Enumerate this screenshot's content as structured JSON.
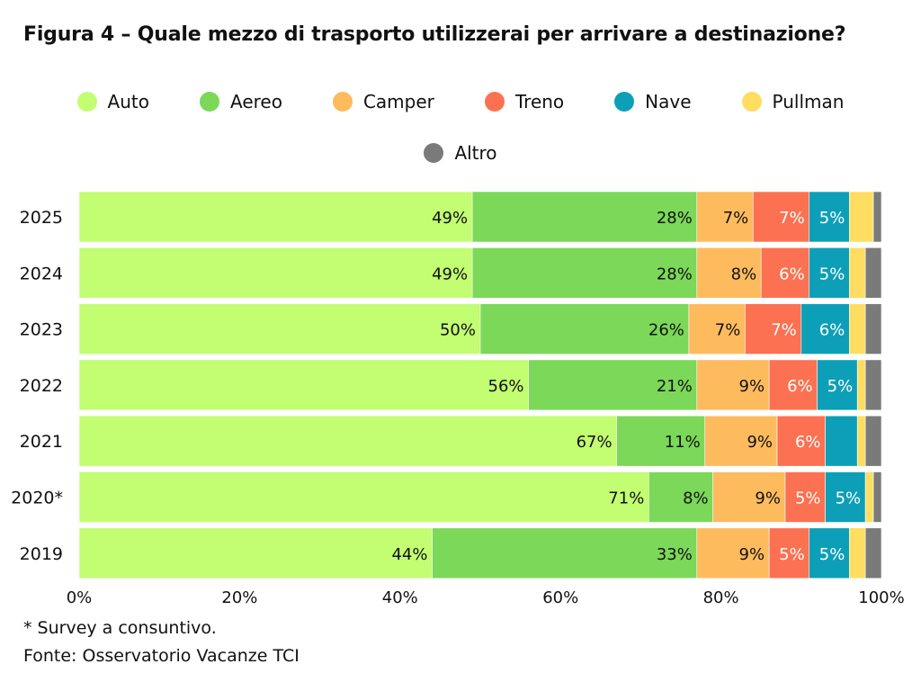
{
  "title": "Figura 4 – Quale mezzo di trasporto utilizzerai per arrivare a destinazione?",
  "footnotes": {
    "note": "* Survey a consuntivo.",
    "source": "Fonte: Osservatorio Vacanze TCI"
  },
  "chart_data": {
    "type": "bar",
    "orientation": "horizontal",
    "stacked": "percent",
    "categories": [
      "2025",
      "2024",
      "2023",
      "2022",
      "2021",
      "2020*",
      "2019"
    ],
    "series": [
      {
        "name": "Auto",
        "color": "#c2fd72",
        "label_color": "#111111",
        "values": [
          49,
          49,
          50,
          56,
          67,
          71,
          44
        ]
      },
      {
        "name": "Aereo",
        "color": "#7cd858",
        "label_color": "#111111",
        "values": [
          28,
          28,
          26,
          21,
          11,
          8,
          33
        ]
      },
      {
        "name": "Camper",
        "color": "#fdbb5e",
        "label_color": "#111111",
        "values": [
          7,
          8,
          7,
          9,
          9,
          9,
          9
        ]
      },
      {
        "name": "Treno",
        "color": "#fc7151",
        "label_color": "#ffffff",
        "values": [
          7,
          6,
          7,
          6,
          6,
          5,
          5
        ]
      },
      {
        "name": "Nave",
        "color": "#0d9fb8",
        "label_color": "#ffffff",
        "values": [
          5,
          5,
          6,
          5,
          4,
          5,
          5
        ]
      },
      {
        "name": "Pullman",
        "color": "#fedd60",
        "label_color": "#111111",
        "values": [
          3,
          2,
          2,
          1,
          1,
          1,
          2
        ]
      },
      {
        "name": "Altro",
        "color": "#7a7a7a",
        "label_color": "#ffffff",
        "values": [
          1,
          2,
          2,
          2,
          2,
          1,
          2
        ]
      }
    ],
    "data_labels": [
      [
        "49%",
        "28%",
        "7%",
        "7%",
        "5%",
        "",
        ""
      ],
      [
        "49%",
        "28%",
        "8%",
        "6%",
        "5%",
        "",
        ""
      ],
      [
        "50%",
        "26%",
        "7%",
        "7%",
        "6%",
        "",
        ""
      ],
      [
        "56%",
        "21%",
        "9%",
        "6%",
        "5%",
        "",
        ""
      ],
      [
        "67%",
        "11%",
        "9%",
        "6%",
        "",
        "",
        ""
      ],
      [
        "71%",
        "8%",
        "9%",
        "5%",
        "5%",
        "",
        ""
      ],
      [
        "44%",
        "33%",
        "9%",
        "5%",
        "5%",
        "",
        ""
      ]
    ],
    "xaxis": {
      "ticks": [
        "0%",
        "20%",
        "40%",
        "60%",
        "80%",
        "100%"
      ],
      "range": [
        0,
        100
      ]
    },
    "legend_position": "top-center",
    "grid": false
  }
}
